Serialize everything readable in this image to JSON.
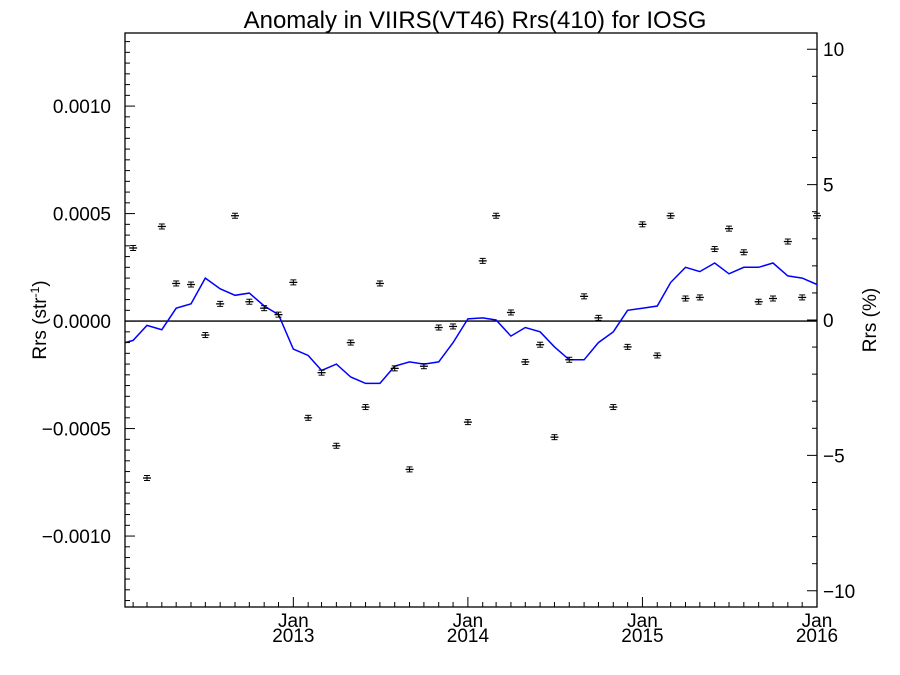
{
  "chart_data": {
    "type": "scatter",
    "title": "Anomaly in VIIRS(VT46) Rrs(410) for IOSG",
    "ylabel_left": "Rrs (str",
    "ylabel_left_sup": "-1",
    "ylabel_left_close": ")",
    "ylabel_right": "Rrs (%)",
    "x_range": [
      "2012-01-15",
      "2016-01-01"
    ],
    "ylim_left": [
      -0.00133,
      0.00134
    ],
    "ylim_right": [
      -10.6,
      10.6
    ],
    "x_ticks": [
      {
        "date": "2013-01-01",
        "line1": "Jan",
        "line2": "2013"
      },
      {
        "date": "2014-01-01",
        "line1": "Jan",
        "line2": "2014"
      },
      {
        "date": "2015-01-01",
        "line1": "Jan",
        "line2": "2015"
      },
      {
        "date": "2016-01-01",
        "line1": "Jan",
        "line2": "2016"
      }
    ],
    "y_ticks_left": [
      {
        "value": 0.001,
        "label": "0.0010"
      },
      {
        "value": 0.0005,
        "label": "0.0005"
      },
      {
        "value": 0.0,
        "label": "0.0000"
      },
      {
        "value": -0.0005,
        "label": "−0.0005"
      },
      {
        "value": -0.001,
        "label": "−0.0010"
      }
    ],
    "y_ticks_right": [
      {
        "value": 10,
        "label": "10"
      },
      {
        "value": 5,
        "label": "5"
      },
      {
        "value": 0,
        "label": "0"
      },
      {
        "value": -5,
        "label": "−5"
      },
      {
        "value": -10,
        "label": "−10"
      }
    ],
    "zero_line": true,
    "line_color": "#0000ff",
    "points": [
      {
        "x": "2012-02-01",
        "y": 0.00034
      },
      {
        "x": "2012-03-01",
        "y": -0.00073
      },
      {
        "x": "2012-04-01",
        "y": 0.00044
      },
      {
        "x": "2012-05-01",
        "y": 0.000175
      },
      {
        "x": "2012-06-01",
        "y": 0.00017
      },
      {
        "x": "2012-07-01",
        "y": -6.5e-05
      },
      {
        "x": "2012-08-01",
        "y": 8e-05
      },
      {
        "x": "2012-09-01",
        "y": 0.00049
      },
      {
        "x": "2012-10-01",
        "y": 9e-05
      },
      {
        "x": "2012-11-01",
        "y": 6e-05
      },
      {
        "x": "2012-12-01",
        "y": 3e-05
      },
      {
        "x": "2013-01-01",
        "y": 0.00018
      },
      {
        "x": "2013-02-01",
        "y": -0.00045
      },
      {
        "x": "2013-03-01",
        "y": -0.00024
      },
      {
        "x": "2013-04-01",
        "y": -0.00058
      },
      {
        "x": "2013-05-01",
        "y": -0.0001
      },
      {
        "x": "2013-06-01",
        "y": -0.0004
      },
      {
        "x": "2013-07-01",
        "y": 0.000175
      },
      {
        "x": "2013-08-01",
        "y": -0.00022
      },
      {
        "x": "2013-09-01",
        "y": -0.00069
      },
      {
        "x": "2013-10-01",
        "y": -0.00021
      },
      {
        "x": "2013-11-01",
        "y": -3e-05
      },
      {
        "x": "2013-12-01",
        "y": -2.5e-05
      },
      {
        "x": "2014-01-01",
        "y": -0.00047
      },
      {
        "x": "2014-02-01",
        "y": 0.00028
      },
      {
        "x": "2014-03-01",
        "y": 0.00049
      },
      {
        "x": "2014-04-01",
        "y": 4e-05
      },
      {
        "x": "2014-05-01",
        "y": -0.00019
      },
      {
        "x": "2014-06-01",
        "y": -0.00011
      },
      {
        "x": "2014-07-01",
        "y": -0.00054
      },
      {
        "x": "2014-08-01",
        "y": -0.00018
      },
      {
        "x": "2014-09-01",
        "y": 0.000115
      },
      {
        "x": "2014-10-01",
        "y": 1.5e-05
      },
      {
        "x": "2014-11-01",
        "y": -0.0004
      },
      {
        "x": "2014-12-01",
        "y": -0.00012
      },
      {
        "x": "2015-01-01",
        "y": 0.00045
      },
      {
        "x": "2015-02-01",
        "y": -0.00016
      },
      {
        "x": "2015-03-01",
        "y": 0.00049
      },
      {
        "x": "2015-04-01",
        "y": 0.000105
      },
      {
        "x": "2015-05-01",
        "y": 0.00011
      },
      {
        "x": "2015-06-01",
        "y": 0.000335
      },
      {
        "x": "2015-07-01",
        "y": 0.00043
      },
      {
        "x": "2015-08-01",
        "y": 0.00032
      },
      {
        "x": "2015-09-01",
        "y": 9e-05
      },
      {
        "x": "2015-10-01",
        "y": 0.000105
      },
      {
        "x": "2015-11-01",
        "y": 0.00037
      },
      {
        "x": "2015-12-01",
        "y": 0.00011
      },
      {
        "x": "2016-01-01",
        "y": 0.00049
      }
    ],
    "smoothed": [
      {
        "x": "2012-01-15",
        "y": -0.0001
      },
      {
        "x": "2012-02-01",
        "y": -9e-05
      },
      {
        "x": "2012-03-01",
        "y": -2e-05
      },
      {
        "x": "2012-04-01",
        "y": -4e-05
      },
      {
        "x": "2012-05-01",
        "y": 6e-05
      },
      {
        "x": "2012-06-01",
        "y": 8e-05
      },
      {
        "x": "2012-07-01",
        "y": 0.0002
      },
      {
        "x": "2012-08-01",
        "y": 0.00015
      },
      {
        "x": "2012-09-01",
        "y": 0.00012
      },
      {
        "x": "2012-10-01",
        "y": 0.00013
      },
      {
        "x": "2012-11-01",
        "y": 7e-05
      },
      {
        "x": "2012-12-01",
        "y": 3e-05
      },
      {
        "x": "2013-01-01",
        "y": -0.00013
      },
      {
        "x": "2013-02-01",
        "y": -0.00016
      },
      {
        "x": "2013-03-01",
        "y": -0.00023
      },
      {
        "x": "2013-04-01",
        "y": -0.0002
      },
      {
        "x": "2013-05-01",
        "y": -0.00026
      },
      {
        "x": "2013-06-01",
        "y": -0.00029
      },
      {
        "x": "2013-07-01",
        "y": -0.00029
      },
      {
        "x": "2013-08-01",
        "y": -0.00021
      },
      {
        "x": "2013-09-01",
        "y": -0.00019
      },
      {
        "x": "2013-10-01",
        "y": -0.0002
      },
      {
        "x": "2013-11-01",
        "y": -0.00019
      },
      {
        "x": "2013-12-01",
        "y": -0.0001
      },
      {
        "x": "2014-01-01",
        "y": 1e-05
      },
      {
        "x": "2014-02-01",
        "y": 1.5e-05
      },
      {
        "x": "2014-03-01",
        "y": 5e-06
      },
      {
        "x": "2014-04-01",
        "y": -7e-05
      },
      {
        "x": "2014-05-01",
        "y": -3e-05
      },
      {
        "x": "2014-06-01",
        "y": -5e-05
      },
      {
        "x": "2014-07-01",
        "y": -0.00012
      },
      {
        "x": "2014-08-01",
        "y": -0.00018
      },
      {
        "x": "2014-09-01",
        "y": -0.00018
      },
      {
        "x": "2014-10-01",
        "y": -0.0001
      },
      {
        "x": "2014-11-01",
        "y": -5e-05
      },
      {
        "x": "2014-12-01",
        "y": 5e-05
      },
      {
        "x": "2015-01-01",
        "y": 6e-05
      },
      {
        "x": "2015-02-01",
        "y": 7e-05
      },
      {
        "x": "2015-03-01",
        "y": 0.00018
      },
      {
        "x": "2015-04-01",
        "y": 0.00025
      },
      {
        "x": "2015-05-01",
        "y": 0.00023
      },
      {
        "x": "2015-06-01",
        "y": 0.00027
      },
      {
        "x": "2015-07-01",
        "y": 0.00022
      },
      {
        "x": "2015-08-01",
        "y": 0.00025
      },
      {
        "x": "2015-09-01",
        "y": 0.00025
      },
      {
        "x": "2015-10-01",
        "y": 0.00027
      },
      {
        "x": "2015-11-01",
        "y": 0.00021
      },
      {
        "x": "2015-12-01",
        "y": 0.0002
      },
      {
        "x": "2016-01-01",
        "y": 0.00017
      }
    ]
  }
}
